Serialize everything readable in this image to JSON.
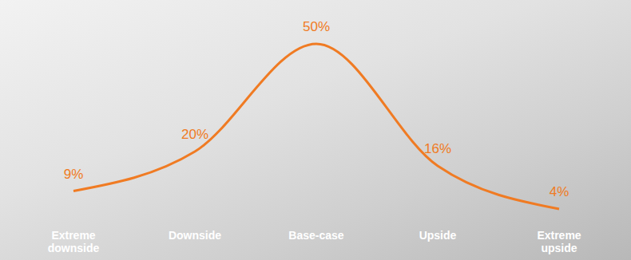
{
  "chart_data": {
    "type": "line",
    "categories": [
      "Extreme downside",
      "Downside",
      "Base-case",
      "Upside",
      "Extreme upside"
    ],
    "values": [
      9,
      20,
      50,
      16,
      4
    ],
    "value_labels": [
      "9%",
      "20%",
      "50%",
      "16%",
      "4%"
    ],
    "color": "#f07b23",
    "data_labels": true,
    "tick_labels": "x",
    "line_style": "solid"
  }
}
